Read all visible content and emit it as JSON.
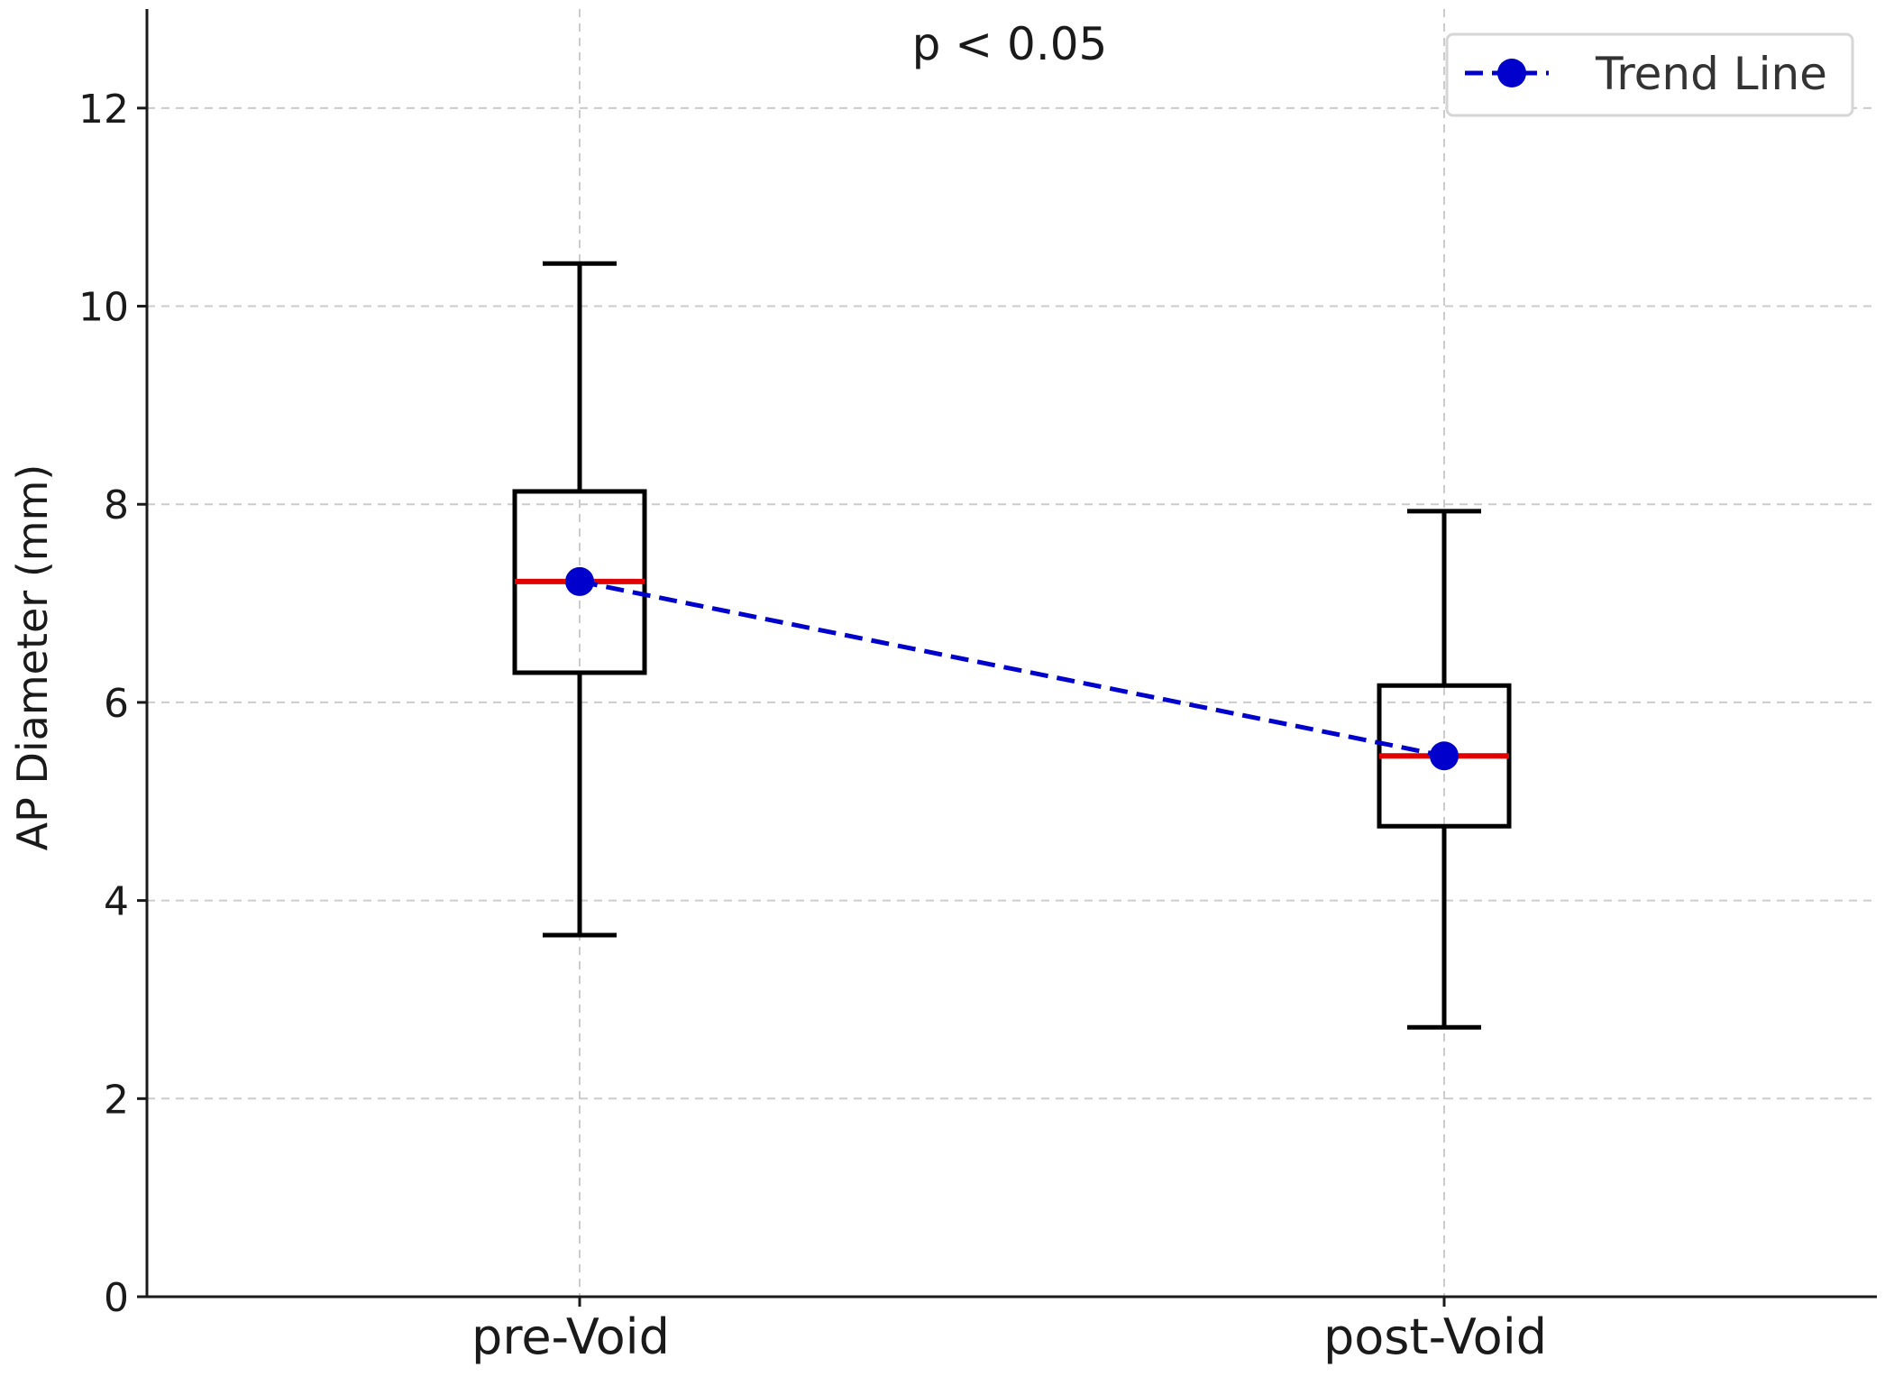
{
  "chart_data": {
    "type": "box",
    "title": "",
    "xlabel": "",
    "ylabel": "AP Diameter (mm)",
    "ylim": [
      0,
      13
    ],
    "yticks": [
      0,
      2,
      4,
      6,
      8,
      10,
      12
    ],
    "categories": [
      "pre-Void",
      "post-Void"
    ],
    "boxes": [
      {
        "category": "pre-Void",
        "whisker_low": 3.65,
        "q1": 6.3,
        "median": 7.22,
        "q3": 8.13,
        "whisker_high": 10.43
      },
      {
        "category": "post-Void",
        "whisker_low": 2.72,
        "q1": 4.75,
        "median": 5.46,
        "q3": 6.17,
        "whisker_high": 7.93
      }
    ],
    "series": [
      {
        "name": "Trend Line",
        "type": "line",
        "style": "dashed",
        "marker": "circle",
        "color": "#0000cc",
        "values": [
          7.22,
          5.46
        ]
      }
    ],
    "annotations": [
      {
        "text": "p < 0.05",
        "position": "top-center"
      }
    ],
    "grid": true,
    "legend": "top-right",
    "colors": {
      "box": "#000000",
      "median": "#e00000",
      "trend": "#0000cc",
      "grid": "#cccccc"
    }
  }
}
